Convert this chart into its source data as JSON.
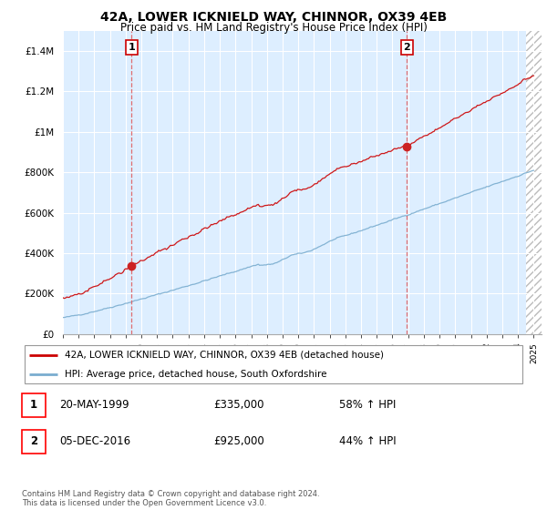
{
  "title_line1": "42A, LOWER ICKNIELD WAY, CHINNOR, OX39 4EB",
  "title_line2": "Price paid vs. HM Land Registry's House Price Index (HPI)",
  "ylim": [
    0,
    1500000
  ],
  "yticks": [
    0,
    200000,
    400000,
    600000,
    800000,
    1000000,
    1200000,
    1400000
  ],
  "ytick_labels": [
    "£0",
    "£200K",
    "£400K",
    "£600K",
    "£800K",
    "£1M",
    "£1.2M",
    "£1.4M"
  ],
  "sale1_x": 1999.38,
  "sale1_y": 335000,
  "sale2_x": 2016.92,
  "sale2_y": 925000,
  "red_color": "#cc0000",
  "blue_color": "#7aadcf",
  "vline_color": "#e06060",
  "bg_color": "#ddeeff",
  "hatch_start": 2024.5,
  "legend_label_red": "42A, LOWER ICKNIELD WAY, CHINNOR, OX39 4EB (detached house)",
  "legend_label_blue": "HPI: Average price, detached house, South Oxfordshire",
  "annotation1_label": "1",
  "annotation2_label": "2",
  "note1_num": "1",
  "note1_date": "20-MAY-1999",
  "note1_price": "£335,000",
  "note1_hpi": "58% ↑ HPI",
  "note2_num": "2",
  "note2_date": "05-DEC-2016",
  "note2_price": "£925,000",
  "note2_hpi": "44% ↑ HPI",
  "footer": "Contains HM Land Registry data © Crown copyright and database right 2024.\nThis data is licensed under the Open Government Licence v3.0.",
  "xmin": 1995.0,
  "xmax": 2025.5
}
